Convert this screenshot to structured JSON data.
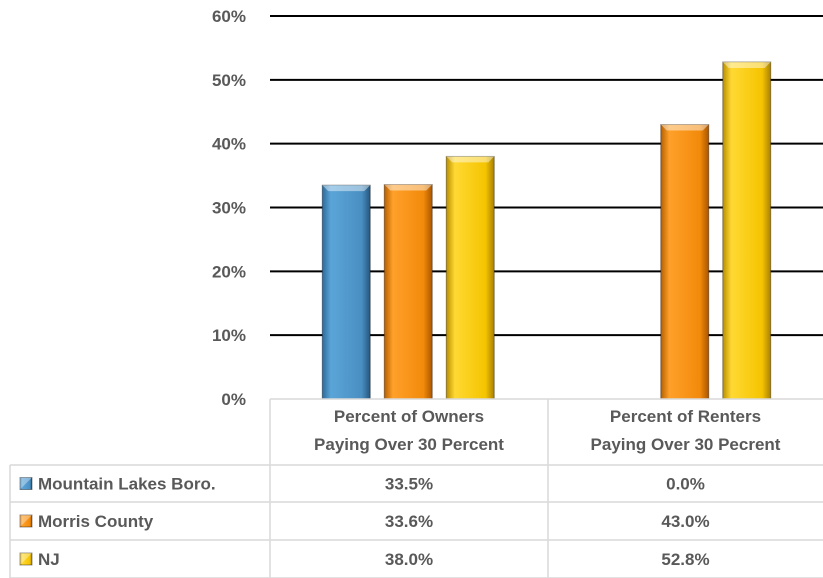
{
  "chart_data": {
    "type": "bar",
    "categories": [
      [
        "Percent of Owners",
        "Paying Over 30 Percent"
      ],
      [
        "Percent of Renters",
        "Paying Over 30 Pecrent"
      ]
    ],
    "series": [
      {
        "name": "Mountain Lakes Boro.",
        "color": "#4a8fc2",
        "values": [
          33.5,
          0.0
        ],
        "labels": [
          "33.5%",
          "0.0%"
        ]
      },
      {
        "name": "Morris County",
        "color": "#f28a0a",
        "values": [
          33.6,
          43.0
        ],
        "labels": [
          "33.6%",
          "43.0%"
        ]
      },
      {
        "name": "NJ",
        "color": "#f5c400",
        "values": [
          38.0,
          52.8
        ],
        "labels": [
          "38.0%",
          "52.8%"
        ]
      }
    ],
    "ylim": [
      0,
      60
    ],
    "yticks": [
      "0%",
      "10%",
      "20%",
      "30%",
      "40%",
      "50%",
      "60%"
    ],
    "grid": true,
    "legend": "data-table"
  }
}
